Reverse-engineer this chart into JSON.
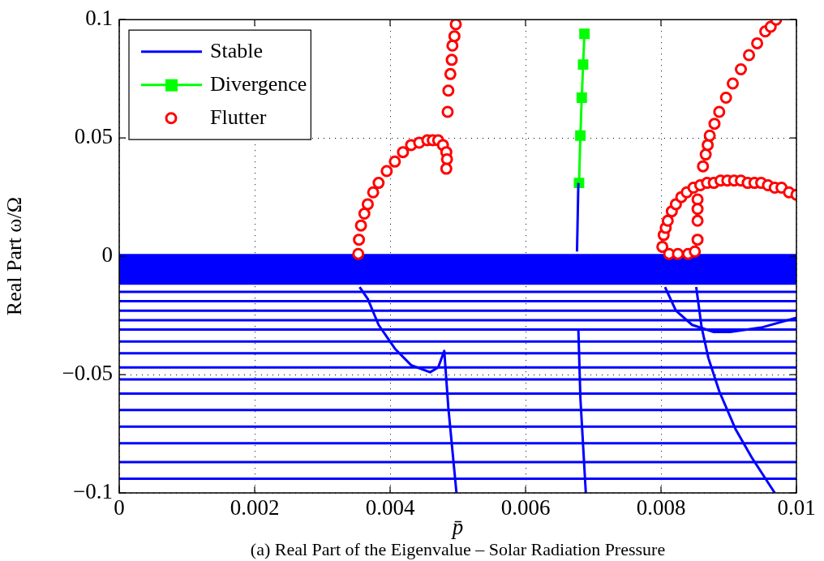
{
  "chart_data": {
    "type": "line",
    "xlabel": "p̄",
    "ylabel": "Real Part ω/Ω",
    "annotations": [
      "(a) Real Part of the Eigenvalue – Solar Radiation Pressure"
    ],
    "xlim": [
      0,
      0.01
    ],
    "xticks": [
      0,
      0.002,
      0.004,
      0.006,
      0.008,
      0.01
    ],
    "ylim": [
      -0.1,
      0.1
    ],
    "yticks": [
      -0.1,
      -0.05,
      0,
      0.05,
      0.1
    ],
    "grid": true,
    "legend": "top left",
    "bands": [
      {
        "axis": "y",
        "from": -0.012,
        "to": 0.001,
        "color": "#0000ff"
      }
    ],
    "series": [
      {
        "name": "Stable",
        "type": "line",
        "marker": "none",
        "color": "#0000ff",
        "x": [
          0,
          0.01
        ],
        "values": [
          -0.015,
          -0.015
        ]
      },
      {
        "type": "line",
        "marker": "none",
        "color": "#0000ff",
        "x": [
          0,
          0.01
        ],
        "values": [
          -0.019,
          -0.019
        ]
      },
      {
        "type": "line",
        "marker": "none",
        "color": "#0000ff",
        "x": [
          0,
          0.01
        ],
        "values": [
          -0.023,
          -0.023
        ]
      },
      {
        "type": "line",
        "marker": "none",
        "color": "#0000ff",
        "x": [
          0,
          0.01
        ],
        "values": [
          -0.027,
          -0.027
        ]
      },
      {
        "type": "line",
        "marker": "none",
        "color": "#0000ff",
        "x": [
          0,
          0.01
        ],
        "values": [
          -0.031,
          -0.031
        ]
      },
      {
        "type": "line",
        "marker": "none",
        "color": "#0000ff",
        "x": [
          0,
          0.01
        ],
        "values": [
          -0.036,
          -0.036
        ]
      },
      {
        "type": "line",
        "marker": "none",
        "color": "#0000ff",
        "x": [
          0,
          0.01
        ],
        "values": [
          -0.041,
          -0.041
        ]
      },
      {
        "type": "line",
        "marker": "none",
        "color": "#0000ff",
        "x": [
          0,
          0.01
        ],
        "values": [
          -0.047,
          -0.047
        ]
      },
      {
        "type": "line",
        "marker": "none",
        "color": "#0000ff",
        "x": [
          0,
          0.01
        ],
        "values": [
          -0.052,
          -0.052
        ]
      },
      {
        "type": "line",
        "marker": "none",
        "color": "#0000ff",
        "x": [
          0,
          0.01
        ],
        "values": [
          -0.058,
          -0.058
        ]
      },
      {
        "type": "line",
        "marker": "none",
        "color": "#0000ff",
        "x": [
          0,
          0.01
        ],
        "values": [
          -0.065,
          -0.065
        ]
      },
      {
        "type": "line",
        "marker": "none",
        "color": "#0000ff",
        "x": [
          0,
          0.01
        ],
        "values": [
          -0.072,
          -0.072
        ]
      },
      {
        "type": "line",
        "marker": "none",
        "color": "#0000ff",
        "x": [
          0,
          0.01
        ],
        "values": [
          -0.079,
          -0.079
        ]
      },
      {
        "type": "line",
        "marker": "none",
        "color": "#0000ff",
        "x": [
          0,
          0.01
        ],
        "values": [
          -0.087,
          -0.087
        ]
      },
      {
        "type": "line",
        "marker": "none",
        "color": "#0000ff",
        "x": [
          0,
          0.01
        ],
        "values": [
          -0.094,
          -0.094
        ]
      },
      {
        "type": "line",
        "marker": "none",
        "color": "#0000ff",
        "x": [
          0.00355,
          0.00367,
          0.00383,
          0.00407,
          0.00431,
          0.00459,
          0.00471,
          0.0048,
          0.00486,
          0.00498
        ],
        "values": [
          -0.013,
          -0.018,
          -0.029,
          -0.039,
          -0.046,
          -0.049,
          -0.047,
          -0.04,
          -0.064,
          -0.1
        ]
      },
      {
        "type": "line",
        "marker": "none",
        "color": "#0000ff",
        "x": [
          0.00676,
          0.00678
        ],
        "values": [
          0.002,
          0.031
        ]
      },
      {
        "type": "line",
        "marker": "none",
        "color": "#0000ff",
        "x": [
          0.00678,
          0.00681,
          0.00689
        ],
        "values": [
          -0.031,
          -0.06,
          -0.1
        ]
      },
      {
        "type": "line",
        "marker": "none",
        "color": "#0000ff",
        "x": [
          0.00806,
          0.00822,
          0.00846,
          0.00878,
          0.00902,
          0.0095,
          0.01
        ],
        "values": [
          -0.013,
          -0.023,
          -0.029,
          -0.032,
          -0.032,
          -0.03,
          -0.026
        ]
      },
      {
        "type": "line",
        "marker": "none",
        "color": "#0000ff",
        "x": [
          0.00852,
          0.0086,
          0.0087,
          0.00886,
          0.0091,
          0.00934,
          0.00968
        ],
        "values": [
          -0.013,
          -0.03,
          -0.043,
          -0.057,
          -0.073,
          -0.085,
          -0.1
        ]
      },
      {
        "name": "Divergence",
        "type": "line",
        "marker": "square",
        "color": "#00ff00",
        "x": [
          0.00679,
          0.00681,
          0.00683,
          0.00685,
          0.00687
        ],
        "values": [
          0.031,
          0.051,
          0.067,
          0.081,
          0.094
        ]
      },
      {
        "name": "Flutter",
        "type": "scatter",
        "marker": "circle",
        "color": "#ff0000",
        "x": [
          0.00353,
          0.00354,
          0.00357,
          0.00362,
          0.00367,
          0.00375,
          0.00383,
          0.00395,
          0.00407,
          0.00419,
          0.00431,
          0.00443,
          0.00455,
          0.00463,
          0.00471,
          0.00478,
          0.00483,
          0.00484,
          0.00483,
          0.00485,
          0.00486,
          0.00489,
          0.00491,
          0.00492,
          0.00495,
          0.00497,
          0.00802,
          0.00804,
          0.00807,
          0.0081,
          0.00816,
          0.00822,
          0.0083,
          0.00838,
          0.00848,
          0.00858,
          0.00868,
          0.00878,
          0.00888,
          0.00898,
          0.00908,
          0.00918,
          0.00928,
          0.00938,
          0.00948,
          0.00958,
          0.00968,
          0.00978,
          0.00989,
          0.01,
          0.00862,
          0.00866,
          0.00869,
          0.00872,
          0.00879,
          0.00886,
          0.00896,
          0.00906,
          0.00918,
          0.0093,
          0.00942,
          0.00954,
          0.00962,
          0.0097,
          0.00854,
          0.00854,
          0.00854,
          0.00854,
          0.00812,
          0.00825,
          0.0084,
          0.0085
        ],
        "values": [
          0.001,
          0.007,
          0.013,
          0.018,
          0.022,
          0.027,
          0.031,
          0.036,
          0.04,
          0.044,
          0.047,
          0.048,
          0.049,
          0.049,
          0.049,
          0.047,
          0.044,
          0.041,
          0.037,
          0.061,
          0.07,
          0.077,
          0.083,
          0.089,
          0.093,
          0.098,
          0.004,
          0.009,
          0.012,
          0.015,
          0.019,
          0.022,
          0.025,
          0.027,
          0.029,
          0.03,
          0.031,
          0.031,
          0.032,
          0.032,
          0.032,
          0.032,
          0.031,
          0.031,
          0.031,
          0.03,
          0.029,
          0.029,
          0.027,
          0.026,
          0.038,
          0.043,
          0.047,
          0.051,
          0.056,
          0.061,
          0.067,
          0.073,
          0.079,
          0.085,
          0.09,
          0.095,
          0.097,
          0.1,
          0.024,
          0.02,
          0.015,
          0.007,
          0.001,
          0.001,
          0.001,
          0.002
        ]
      }
    ]
  }
}
